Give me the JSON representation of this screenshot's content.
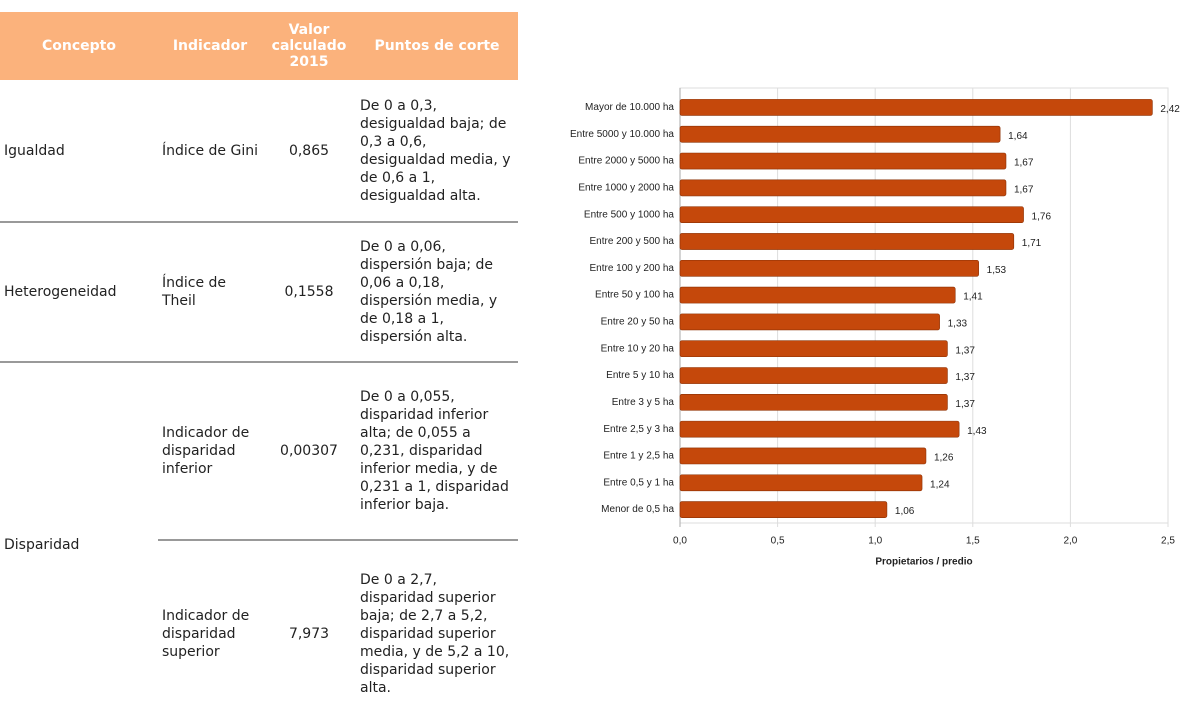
{
  "table": {
    "header": [
      "Concepto",
      "Indicador",
      "Valor calculado 2015",
      "Puntos de corte"
    ],
    "rows": [
      {
        "concepto": "Igualdad",
        "indicadores": [
          {
            "indicador": "Índice de Gini",
            "valor": "0,865",
            "puntos": "De 0 a 0,3, desigualdad baja; de 0,3 a 0,6, desigualdad media, y de 0,6 a 1, desigualdad alta."
          }
        ]
      },
      {
        "concepto": "Heterogeneidad",
        "indicadores": [
          {
            "indicador": "Índice de Theil",
            "valor": "0,1558",
            "puntos": "De 0 a 0,06, dispersión baja; de 0,06 a 0,18, dispersión media, y de 0,18 a 1, dispersión alta."
          }
        ]
      },
      {
        "concepto": "Disparidad",
        "indicadores": [
          {
            "indicador": "Indicador de disparidad inferior",
            "valor": "0,00307",
            "puntos": "De 0 a 0,055, disparidad inferior alta; de 0,055 a 0,231, disparidad inferior media, y de 0,231 a 1, disparidad inferior baja."
          },
          {
            "indicador": "Indicador de disparidad superior",
            "valor": "7,973",
            "puntos": "De 0 a 2,7, disparidad superior baja; de 2,7 a 5,2, disparidad superior media, y de 5,2 a 10, disparidad superior alta."
          }
        ]
      }
    ]
  },
  "chart_data": {
    "type": "bar",
    "orientation": "horizontal",
    "categories": [
      "Mayor de 10.000 ha",
      "Entre 5000 y 10.000 ha",
      "Entre 2000 y 5000 ha",
      "Entre 1000 y 2000 ha",
      "Entre 500 y 1000 ha",
      "Entre 200 y 500 ha",
      "Entre 100 y 200 ha",
      "Entre 50 y 100 ha",
      "Entre 20 y 50 ha",
      "Entre 10 y 20 ha",
      "Entre 5 y 10 ha",
      "Entre 3 y 5 ha",
      "Entre 2,5 y 3 ha",
      "Entre 1 y 2,5 ha",
      "Entre 0,5 y 1 ha",
      "Menor de 0,5 ha"
    ],
    "values": [
      2.42,
      1.64,
      1.67,
      1.67,
      1.76,
      1.71,
      1.53,
      1.41,
      1.33,
      1.37,
      1.37,
      1.37,
      1.43,
      1.26,
      1.24,
      1.06
    ],
    "value_labels": [
      "2,42",
      "1,64",
      "1,67",
      "1,67",
      "1,76",
      "1,71",
      "1,53",
      "1,41",
      "1,33",
      "1,37",
      "1,37",
      "1,37",
      "1,43",
      "1,26",
      "1,24",
      "1,06"
    ],
    "xlabel": "Propietarios / predio",
    "xlim": [
      0,
      2.5
    ],
    "xticks": [
      {
        "value": 0,
        "label": "0,0"
      },
      {
        "value": 0.5,
        "label": "0,5"
      },
      {
        "value": 1,
        "label": "1,0"
      },
      {
        "value": 1.5,
        "label": "1,5"
      },
      {
        "value": 2,
        "label": "2,0"
      },
      {
        "value": 2.5,
        "label": "2,5"
      }
    ],
    "color": "#c5480b",
    "grid": true
  }
}
